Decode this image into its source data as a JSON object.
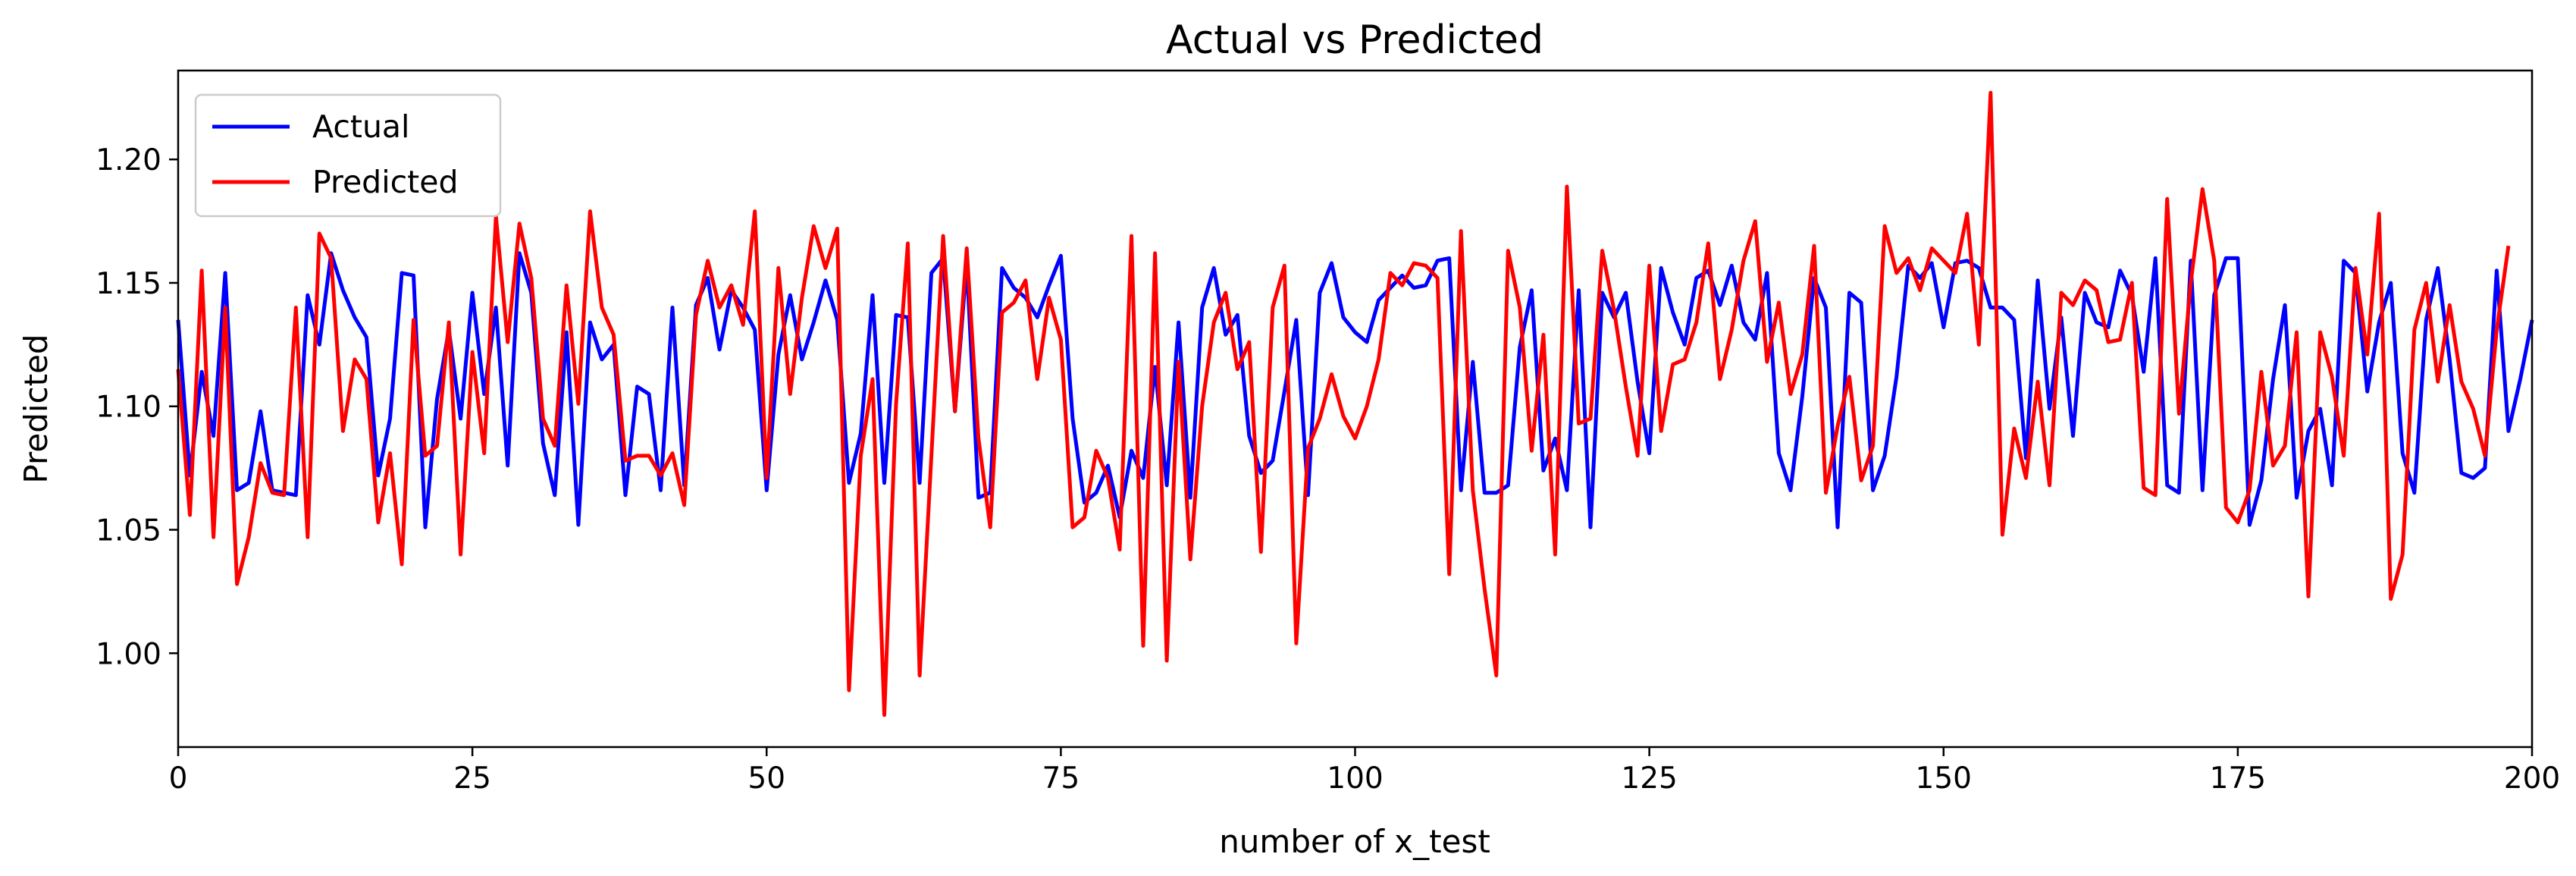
{
  "chart_data": {
    "type": "line",
    "title": "Actual vs Predicted",
    "xlabel": "number of x_test",
    "ylabel": "Predicted",
    "xlim": [
      0,
      200
    ],
    "ylim": [
      0.962,
      1.236
    ],
    "xticks": [
      "0",
      "25",
      "50",
      "75",
      "100",
      "125",
      "150",
      "175",
      "200"
    ],
    "yticks": [
      "1.00",
      "1.05",
      "1.10",
      "1.15",
      "1.20"
    ],
    "grid": false,
    "legend_position": "top-left",
    "series": [
      {
        "name": "Actual",
        "color": "#0000ff",
        "values": [
          1.135,
          1.072,
          1.114,
          1.088,
          1.154,
          1.066,
          1.069,
          1.098,
          1.066,
          1.065,
          1.064,
          1.145,
          1.125,
          1.162,
          1.147,
          1.136,
          1.128,
          1.072,
          1.095,
          1.154,
          1.153,
          1.051,
          1.103,
          1.131,
          1.095,
          1.146,
          1.105,
          1.14,
          1.076,
          1.162,
          1.146,
          1.085,
          1.064,
          1.13,
          1.052,
          1.134,
          1.119,
          1.125,
          1.064,
          1.108,
          1.105,
          1.066,
          1.14,
          1.068,
          1.141,
          1.152,
          1.123,
          1.147,
          1.14,
          1.131,
          1.066,
          1.121,
          1.145,
          1.119,
          1.134,
          1.151,
          1.135,
          1.069,
          1.089,
          1.145,
          1.069,
          1.137,
          1.136,
          1.069,
          1.154,
          1.16,
          1.098,
          1.158,
          1.063,
          1.065,
          1.156,
          1.148,
          1.144,
          1.136,
          1.149,
          1.161,
          1.095,
          1.061,
          1.065,
          1.076,
          1.055,
          1.082,
          1.071,
          1.116,
          1.068,
          1.134,
          1.063,
          1.14,
          1.156,
          1.129,
          1.137,
          1.088,
          1.073,
          1.078,
          1.106,
          1.135,
          1.064,
          1.146,
          1.158,
          1.136,
          1.13,
          1.126,
          1.143,
          1.148,
          1.153,
          1.148,
          1.149,
          1.159,
          1.16,
          1.066,
          1.118,
          1.065,
          1.065,
          1.068,
          1.124,
          1.147,
          1.074,
          1.087,
          1.066,
          1.147,
          1.051,
          1.146,
          1.136,
          1.146,
          1.11,
          1.081,
          1.156,
          1.138,
          1.125,
          1.152,
          1.155,
          1.141,
          1.157,
          1.134,
          1.127,
          1.154,
          1.081,
          1.066,
          1.104,
          1.152,
          1.14,
          1.051,
          1.146,
          1.142,
          1.066,
          1.08,
          1.112,
          1.157,
          1.152,
          1.158,
          1.132,
          1.158,
          1.159,
          1.156,
          1.14,
          1.14,
          1.135,
          1.079,
          1.151,
          1.099,
          1.136,
          1.088,
          1.146,
          1.134,
          1.132,
          1.155,
          1.145,
          1.114,
          1.16,
          1.068,
          1.065,
          1.159,
          1.066,
          1.145,
          1.16,
          1.16,
          1.052,
          1.07,
          1.111,
          1.141,
          1.063,
          1.09,
          1.099,
          1.068,
          1.159,
          1.154,
          1.106,
          1.134,
          1.15,
          1.081,
          1.065,
          1.135,
          1.156,
          1.119,
          1.073,
          1.071,
          1.075,
          1.155,
          1.09,
          1.111,
          1.135
        ]
      },
      {
        "name": "Predicted",
        "color": "#ff0000",
        "values": [
          1.115,
          1.056,
          1.155,
          1.047,
          1.14,
          1.028,
          1.047,
          1.077,
          1.065,
          1.064,
          1.14,
          1.047,
          1.17,
          1.16,
          1.09,
          1.119,
          1.111,
          1.053,
          1.081,
          1.036,
          1.135,
          1.08,
          1.084,
          1.134,
          1.04,
          1.122,
          1.081,
          1.177,
          1.126,
          1.174,
          1.152,
          1.095,
          1.084,
          1.149,
          1.101,
          1.179,
          1.14,
          1.129,
          1.078,
          1.08,
          1.08,
          1.072,
          1.081,
          1.06,
          1.137,
          1.159,
          1.14,
          1.149,
          1.133,
          1.179,
          1.071,
          1.156,
          1.105,
          1.144,
          1.173,
          1.156,
          1.172,
          0.985,
          1.08,
          1.111,
          0.975,
          1.101,
          1.166,
          0.991,
          1.08,
          1.169,
          1.098,
          1.164,
          1.087,
          1.051,
          1.138,
          1.142,
          1.151,
          1.111,
          1.144,
          1.127,
          1.051,
          1.055,
          1.082,
          1.071,
          1.042,
          1.169,
          1.003,
          1.162,
          0.997,
          1.118,
          1.038,
          1.1,
          1.134,
          1.146,
          1.115,
          1.126,
          1.041,
          1.14,
          1.157,
          1.004,
          1.083,
          1.095,
          1.113,
          1.096,
          1.087,
          1.1,
          1.119,
          1.154,
          1.149,
          1.158,
          1.157,
          1.152,
          1.032,
          1.171,
          1.066,
          1.026,
          0.991,
          1.163,
          1.14,
          1.082,
          1.129,
          1.04,
          1.189,
          1.093,
          1.095,
          1.163,
          1.139,
          1.108,
          1.08,
          1.157,
          1.09,
          1.117,
          1.119,
          1.134,
          1.166,
          1.111,
          1.131,
          1.159,
          1.175,
          1.118,
          1.142,
          1.105,
          1.121,
          1.165,
          1.065,
          1.092,
          1.112,
          1.07,
          1.084,
          1.173,
          1.154,
          1.16,
          1.147,
          1.164,
          1.159,
          1.154,
          1.178,
          1.125,
          1.227,
          1.048,
          1.091,
          1.071,
          1.11,
          1.068,
          1.146,
          1.141,
          1.151,
          1.147,
          1.126,
          1.127,
          1.15,
          1.067,
          1.064,
          1.184,
          1.097,
          1.15,
          1.188,
          1.159,
          1.059,
          1.053,
          1.066,
          1.114,
          1.076,
          1.084,
          1.13,
          1.023,
          1.13,
          1.112,
          1.08,
          1.156,
          1.121,
          1.178,
          1.022,
          1.04,
          1.131,
          1.15,
          1.11,
          1.141,
          1.11,
          1.099,
          1.08,
          1.131,
          1.165
        ]
      }
    ]
  }
}
